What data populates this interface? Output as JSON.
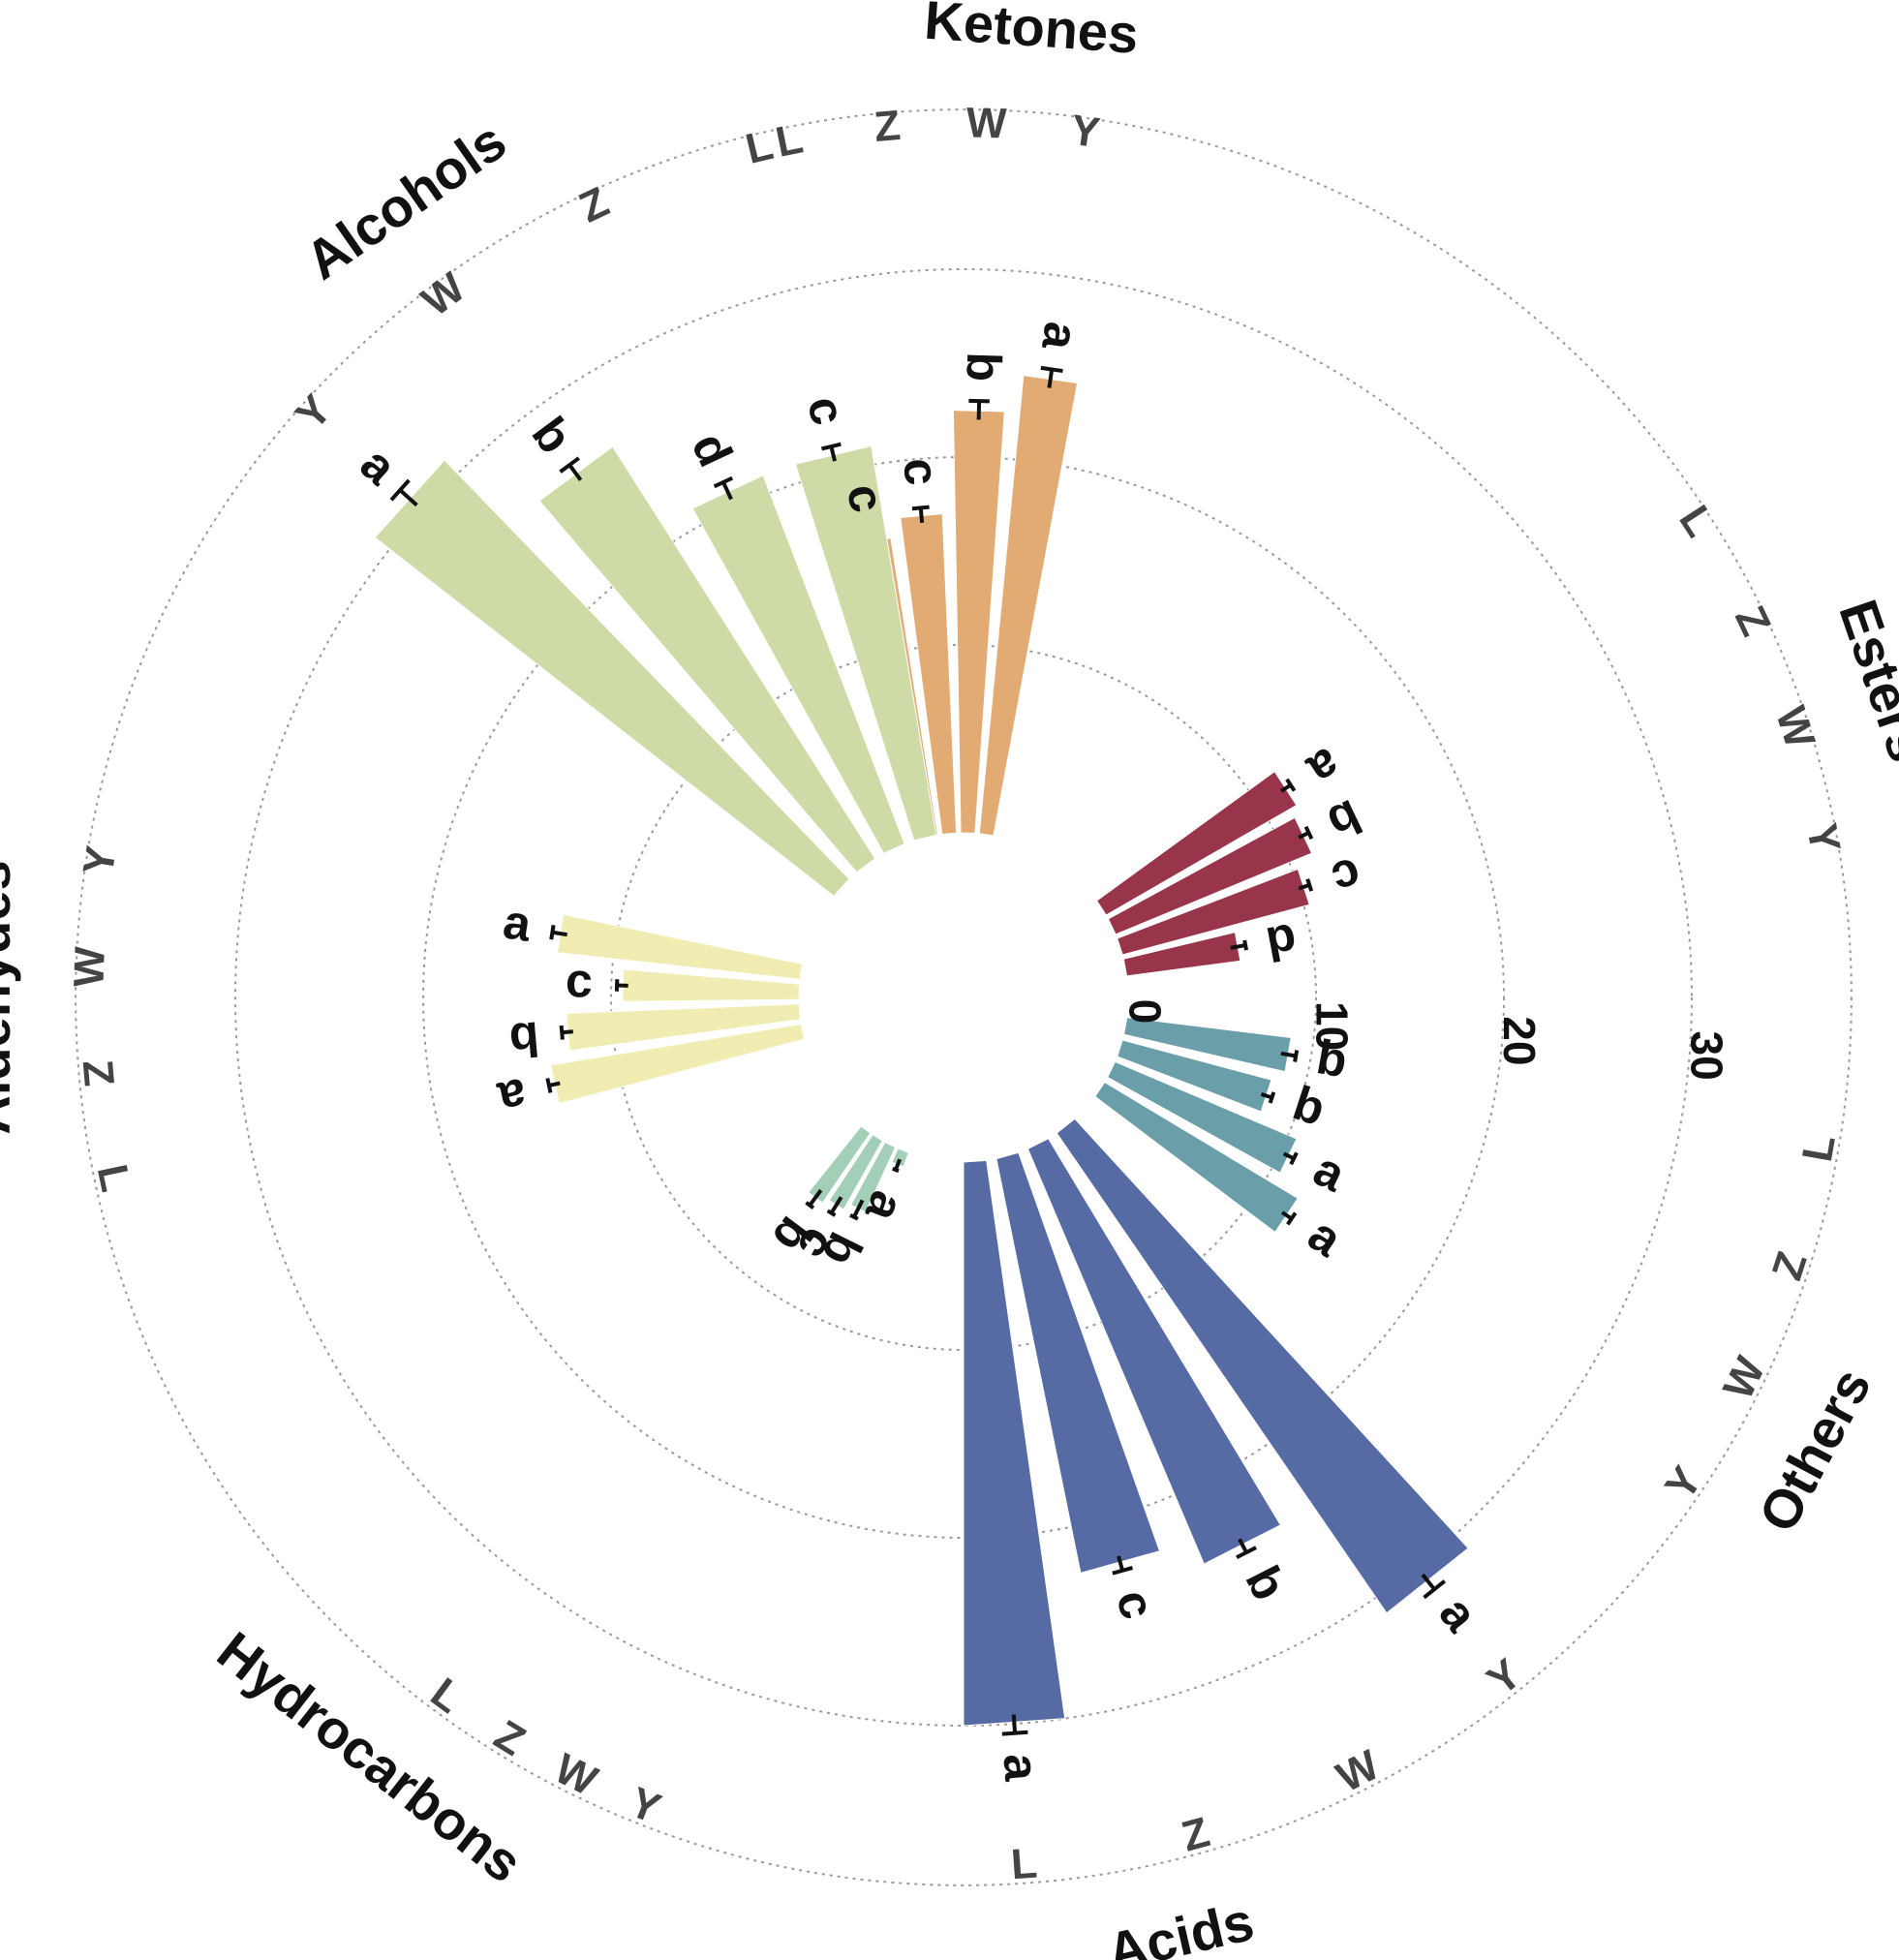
{
  "chart_data": {
    "type": "bar",
    "subtype": "circular-grouped-bar",
    "title": "",
    "radial_ticks": [
      "0",
      "10",
      "20",
      "30"
    ],
    "rlim": [
      0,
      35
    ],
    "grid": true,
    "samples": [
      "L",
      "Z",
      "W",
      "Y"
    ],
    "groups": [
      {
        "name": "Ketones",
        "color": "#e3ab74",
        "values": [
          16.0,
          17.0,
          22.5,
          24.5
        ],
        "errors": [
          0.3,
          0.4,
          0.5,
          0.5
        ],
        "letters": [
          "c",
          "c",
          "b",
          "a"
        ]
      },
      {
        "name": "Esters",
        "color": "#99354a",
        "values": [
          11.7,
          11.3,
          10.3,
          6.1
        ],
        "errors": [
          0.3,
          0.3,
          0.3,
          0.4
        ],
        "letters": [
          "a",
          "b",
          "c",
          "d"
        ]
      },
      {
        "name": "Others",
        "color": "#6a9ea8",
        "values": [
          8.8,
          8.2,
          10.5,
          12.0
        ],
        "errors": [
          0.4,
          0.3,
          0.3,
          0.3
        ],
        "letters": [
          "b",
          "b",
          "a",
          "a"
        ]
      },
      {
        "name": "Acids",
        "color": "#566aa3",
        "values": [
          30.0,
          22.5,
          24.0,
          31.0
        ],
        "errors": [
          0.5,
          0.4,
          0.4,
          0.5
        ],
        "letters": [
          "a",
          "c",
          "b",
          "a"
        ]
      },
      {
        "name": "Hydrocarbons",
        "color": "#a3cfb8",
        "values": [
          4.5,
          4.2,
          3.8,
          0.8
        ],
        "errors": [
          0.5,
          0.5,
          0.5,
          0.3
        ],
        "letters": [
          "b",
          "c",
          "b",
          "a"
        ]
      },
      {
        "name": "Aldehydes",
        "color": "#f0ecb2",
        "values": [
          13.5,
          12.4,
          9.4,
          13.0
        ],
        "errors": [
          0.3,
          0.3,
          0.3,
          0.4
        ],
        "letters": [
          "a",
          "b",
          "c",
          "a"
        ]
      },
      {
        "name": "Alcohols",
        "color": "#cfdba6",
        "values": [
          21.0,
          21.0,
          26.0,
          31.0
        ],
        "errors": [
          0.4,
          0.5,
          0.5,
          0.6
        ],
        "letters": [
          "c",
          "d",
          "b",
          "a"
        ]
      }
    ]
  }
}
